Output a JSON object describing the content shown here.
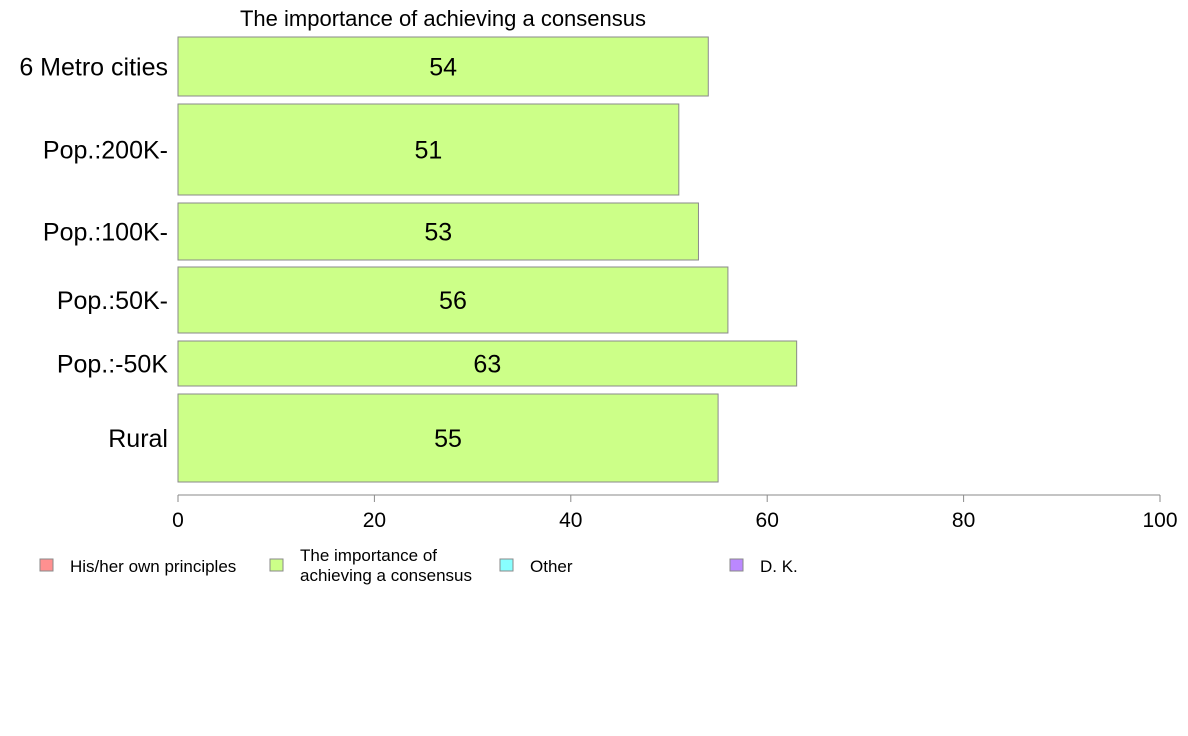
{
  "chart_data": {
    "type": "bar",
    "orientation": "horizontal",
    "title": "The importance of achieving a consensus",
    "categories": [
      "6 Metro cities",
      "Pop.:200K-",
      "Pop.:100K-",
      "Pop.:50K-",
      "Pop.:-50K",
      "Rural"
    ],
    "series": [
      {
        "name": "The importance of achieving a consensus",
        "color": "#ccff88",
        "values": [
          54,
          51,
          53,
          56,
          63,
          55
        ]
      }
    ],
    "xlim": [
      0,
      100
    ],
    "xticks": [
      0,
      20,
      40,
      60,
      80,
      100
    ],
    "grid": false,
    "legend_position": "bottom",
    "legend": [
      {
        "label": "His/her own principles",
        "color": "#ff9090"
      },
      {
        "label": "The importance of achieving a consensus",
        "lines": [
          "The importance of",
          "achieving a consensus"
        ],
        "color": "#ccff88"
      },
      {
        "label": "Other",
        "color": "#88ffff"
      },
      {
        "label": "D. K.",
        "color": "#bb88ff"
      }
    ]
  }
}
